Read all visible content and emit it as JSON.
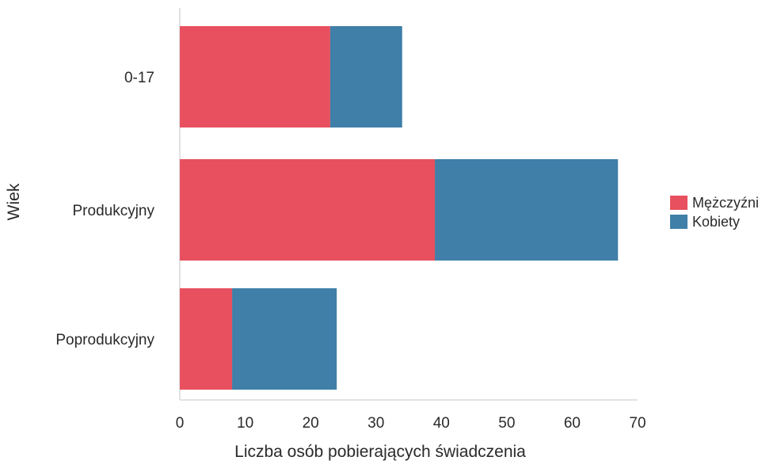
{
  "chart_data": {
    "type": "bar",
    "orientation": "horizontal",
    "stacked": true,
    "categories": [
      "0-17",
      "Produkcyjny",
      "Poprodukcyjny"
    ],
    "series": [
      {
        "name": "Mężczyźni",
        "values": [
          23,
          39,
          8
        ],
        "color": "#e8505f"
      },
      {
        "name": "Kobiety",
        "values": [
          11,
          28,
          16
        ],
        "color": "#3f7fa8"
      }
    ],
    "xlabel": "Liczba osób pobierających świadczenia",
    "ylabel": "Wiek",
    "xlim": [
      0,
      70
    ],
    "xticks": [
      "0",
      "10",
      "20",
      "30",
      "40",
      "50",
      "60",
      "70"
    ],
    "grid": false,
    "legend": "right"
  }
}
